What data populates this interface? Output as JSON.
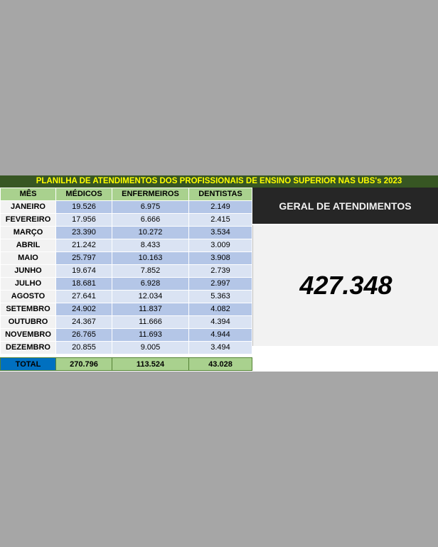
{
  "title": "PLANILHA DE ATENDIMENTOS DOS PROFISSIONAIS DE ENSINO SUPERIOR NAS UBS's 2023",
  "headers": {
    "mes": "MÊS",
    "medicos": "MÉDICOS",
    "enfermeiros": "ENFERMEIROS",
    "dentistas": "DENTISTAS"
  },
  "rows": [
    {
      "mes": "JANEIRO",
      "medicos": "19.526",
      "enfermeiros": "6.975",
      "dentistas": "2.149"
    },
    {
      "mes": "FEVEREIRO",
      "medicos": "17.956",
      "enfermeiros": "6.666",
      "dentistas": "2.415"
    },
    {
      "mes": "MARÇO",
      "medicos": "23.390",
      "enfermeiros": "10.272",
      "dentistas": "3.534"
    },
    {
      "mes": "ABRIL",
      "medicos": "21.242",
      "enfermeiros": "8.433",
      "dentistas": "3.009"
    },
    {
      "mes": "MAIO",
      "medicos": "25.797",
      "enfermeiros": "10.163",
      "dentistas": "3.908"
    },
    {
      "mes": "JUNHO",
      "medicos": "19.674",
      "enfermeiros": "7.852",
      "dentistas": "2.739"
    },
    {
      "mes": "JULHO",
      "medicos": "18.681",
      "enfermeiros": "6.928",
      "dentistas": "2.997"
    },
    {
      "mes": "AGOSTO",
      "medicos": "27.641",
      "enfermeiros": "12.034",
      "dentistas": "5.363"
    },
    {
      "mes": "SETEMBRO",
      "medicos": "24.902",
      "enfermeiros": "11.837",
      "dentistas": "4.082"
    },
    {
      "mes": "OUTUBRO",
      "medicos": "24.367",
      "enfermeiros": "11.666",
      "dentistas": "4.394"
    },
    {
      "mes": "NOVEMBRO",
      "medicos": "26.765",
      "enfermeiros": "11.693",
      "dentistas": "4.944"
    },
    {
      "mes": "DEZEMBRO",
      "medicos": "20.855",
      "enfermeiros": "9.005",
      "dentistas": "3.494"
    }
  ],
  "geral": {
    "label": "GERAL DE ATENDIMENTOS",
    "value": "427.348"
  },
  "totals": {
    "label": "TOTAL",
    "medicos": "270.796",
    "enfermeiros": "113.524",
    "dentistas": "43.028"
  },
  "colors": {
    "title_bg": "#375623",
    "title_text": "#ffff00",
    "header_bg": "#a9d18e",
    "row_odd": "#b4c6e7",
    "row_even": "#dae3f3",
    "total_label_bg": "#0070c0",
    "geral_bg": "#262626"
  }
}
